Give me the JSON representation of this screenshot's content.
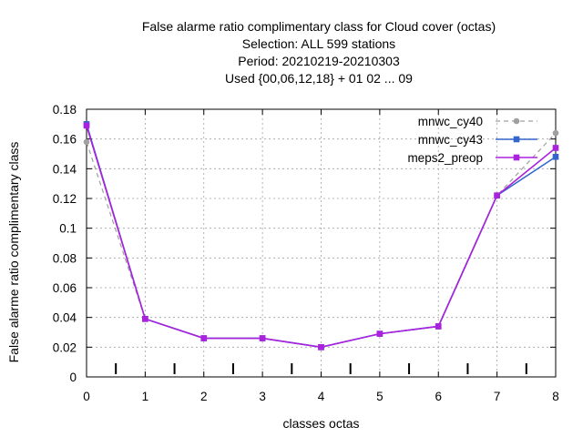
{
  "chart_data": {
    "type": "line",
    "title_lines": [
      "False alarme ratio complimentary class  for Cloud cover (octas)",
      "Selection: ALL    599 stations",
      "Period: 20210219-20210303",
      "Used {00,06,12,18} + 01 02 ... 09"
    ],
    "xlabel": "classes octas",
    "ylabel": "False alarme ratio complimentary class",
    "x": [
      0,
      1,
      2,
      3,
      4,
      5,
      6,
      7,
      8
    ],
    "xlim": [
      0,
      8
    ],
    "ylim": [
      0,
      0.18
    ],
    "xticks": [
      "0",
      "1",
      "2",
      "3",
      "4",
      "5",
      "6",
      "7",
      "8"
    ],
    "yticks": [
      0,
      0.02,
      0.04,
      0.06,
      0.08,
      0.1,
      0.12,
      0.14,
      0.16,
      0.18
    ],
    "ytick_labels": [
      "0",
      "0.02",
      "0.04",
      "0.06",
      "0.08",
      "0.1",
      "0.12",
      "0.14",
      "0.16",
      "0.18"
    ],
    "grid": true,
    "legend_position": "top-right",
    "class_boundary_ticks": [
      0.5,
      1.5,
      2.5,
      3.5,
      4.5,
      5.5,
      6.5,
      7.5
    ],
    "series": [
      {
        "name": "mnwc_cy40",
        "color": "#a0a0a0",
        "dashed": true,
        "marker": "circle",
        "values": [
          0.158,
          0.039,
          0.026,
          0.026,
          0.02,
          0.029,
          0.034,
          0.122,
          0.164
        ]
      },
      {
        "name": "mnwc_cy43",
        "color": "#3366cc",
        "dashed": false,
        "marker": "square",
        "values": [
          0.17,
          0.039,
          0.026,
          0.026,
          0.02,
          0.029,
          0.034,
          0.122,
          0.148
        ]
      },
      {
        "name": "meps2_preop",
        "color": "#aa22dd",
        "dashed": false,
        "marker": "square",
        "values": [
          0.169,
          0.039,
          0.026,
          0.026,
          0.02,
          0.029,
          0.034,
          0.122,
          0.154
        ]
      }
    ]
  }
}
